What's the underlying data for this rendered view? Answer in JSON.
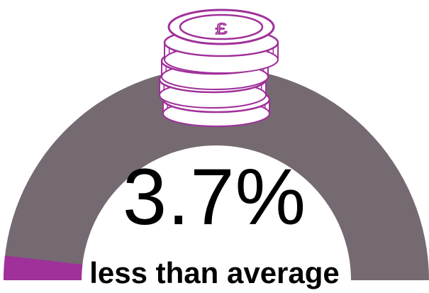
{
  "value_text": "3.7%",
  "caption": "less than average",
  "gauge": {
    "fraction": 0.037,
    "track_color": "#756a72",
    "fill_color": "#a0309a"
  },
  "icon": {
    "name": "coin-stack-pound-icon",
    "symbol": "£",
    "color": "#a0309a"
  }
}
